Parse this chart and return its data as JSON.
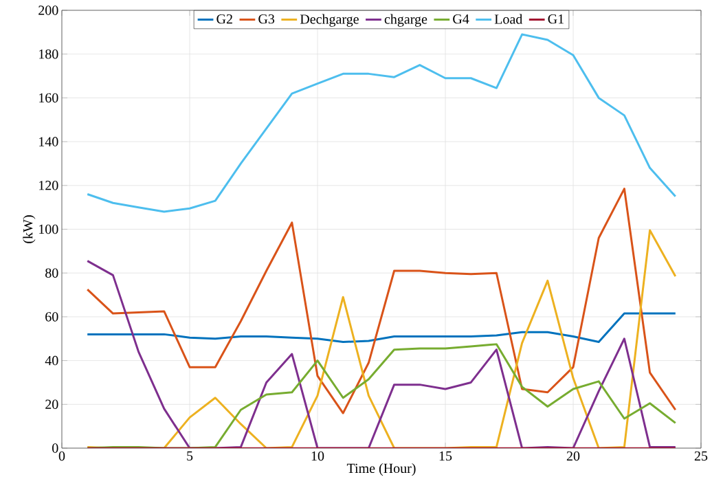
{
  "chart_data": {
    "type": "line",
    "xlabel": "Time (Hour)",
    "ylabel": "(kW)",
    "x": [
      1,
      2,
      3,
      4,
      5,
      6,
      7,
      8,
      9,
      10,
      11,
      12,
      13,
      14,
      15,
      16,
      17,
      18,
      19,
      20,
      21,
      22,
      23,
      24
    ],
    "xlim": [
      0,
      25
    ],
    "xticks": [
      0,
      5,
      10,
      15,
      20,
      25
    ],
    "ylim": [
      0,
      200
    ],
    "yticks": [
      0,
      20,
      40,
      60,
      80,
      100,
      120,
      140,
      160,
      180,
      200
    ],
    "grid": true,
    "legend": "top",
    "marker": "none",
    "line_style": "solid",
    "series": [
      {
        "name": "G2",
        "color": "#0072bd",
        "values": [
          52,
          52,
          52,
          52,
          50.5,
          50,
          51,
          51,
          50.5,
          50,
          48.5,
          49,
          51,
          51,
          51,
          51,
          51.5,
          53,
          53,
          51,
          48.5,
          61.5,
          61.5,
          61.5
        ]
      },
      {
        "name": "G3",
        "color": "#d95319",
        "values": [
          72.5,
          61.5,
          62,
          62.5,
          37,
          37,
          58,
          81,
          103,
          33,
          16,
          39,
          81,
          81,
          80,
          79.5,
          80,
          27,
          25.5,
          37,
          96,
          118.5,
          34.5,
          17.5
        ]
      },
      {
        "name": "Dechgarge",
        "color": "#edb120",
        "values": [
          0.5,
          0,
          0,
          0,
          14,
          23,
          11,
          0,
          0.5,
          24,
          69,
          24,
          0,
          0,
          0,
          0.5,
          0.5,
          48,
          76.5,
          32,
          0,
          0.5,
          99.5,
          78.5
        ]
      },
      {
        "name": "chgarge",
        "color": "#7e2f8e",
        "values": [
          85.5,
          79,
          44,
          18,
          0,
          0,
          0.5,
          30,
          43,
          0,
          0,
          0,
          29,
          29,
          27,
          30,
          45,
          0,
          0.5,
          0,
          26,
          50,
          0.5,
          0.5
        ]
      },
      {
        "name": "G4",
        "color": "#77ac30",
        "values": [
          0,
          0.5,
          0.5,
          0,
          0,
          0.5,
          17.5,
          24.5,
          25.5,
          40,
          23,
          31.5,
          45,
          45.5,
          45.5,
          46.5,
          47.5,
          28,
          19,
          27,
          30.5,
          13.5,
          20.5,
          11.5
        ]
      },
      {
        "name": "Load",
        "color": "#4dbeee",
        "values": [
          116,
          112,
          110,
          108,
          109.5,
          113,
          130,
          146,
          162,
          166.5,
          171,
          171,
          169.5,
          175,
          169,
          169,
          164.5,
          189,
          186.5,
          179.5,
          160,
          152,
          128,
          115
        ]
      },
      {
        "name": "G1",
        "color": "#a2142f",
        "values": [
          0,
          0,
          0,
          0,
          0,
          0,
          0,
          0,
          0,
          0,
          0,
          0,
          0,
          0,
          0,
          0,
          0,
          0,
          0,
          0,
          0,
          0,
          0,
          0
        ]
      }
    ]
  }
}
